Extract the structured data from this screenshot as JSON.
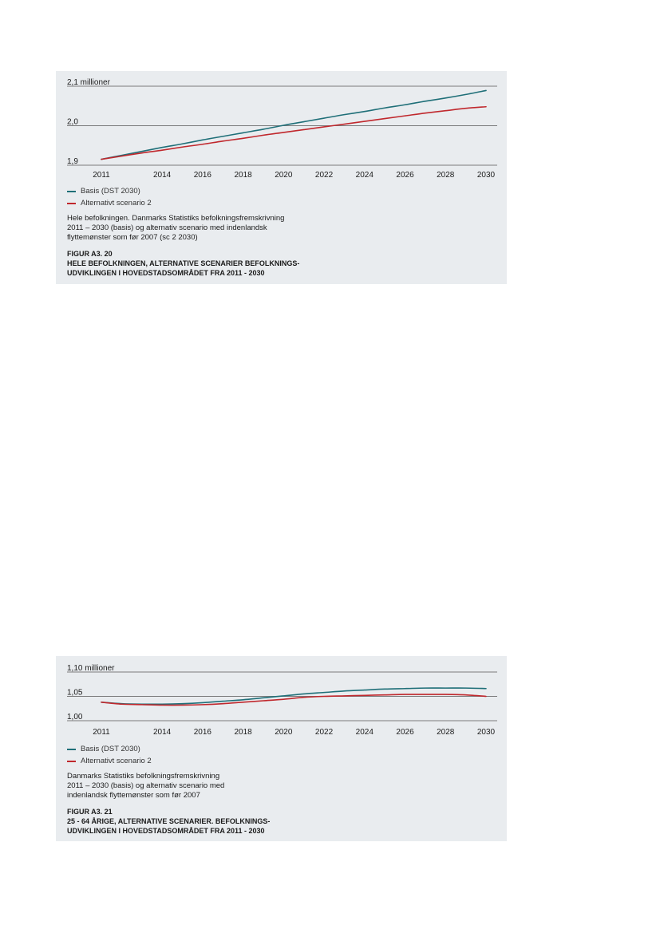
{
  "figures": [
    {
      "description_lines": [
        "Hele befolkningen. Danmarks Statistiks befolkningsfremskrivning",
        "2011 – 2030 (basis) og alternativ scenario med indenlandsk",
        "flyttemønster som før 2007 (sc 2 2030)"
      ],
      "figure_number": "FIGUR A3. 20",
      "title_lines": [
        "HELE BEFOLKNINGEN, ALTERNATIVE SCENARIER BEFOLKNINGS-",
        "UDVIKLINGEN I  HOVEDSTADSOMRÅDET FRA 2011 - 2030"
      ],
      "legend": [
        "Basis (DST 2030)",
        "Alternativt scenario 2"
      ],
      "colors": {
        "basis": "#1f6f78",
        "alternative": "#c0282d",
        "gridline": "#555555"
      }
    },
    {
      "description_lines": [
        "Danmarks Statistiks befolkningsfremskrivning",
        "2011 – 2030 (basis) og alternativ scenario med",
        "indenlandsk flyttemønster som før 2007"
      ],
      "figure_number": "FIGUR A3. 21",
      "title_lines": [
        "25 - 64 ÅRIGE, ALTERNATIVE SCENARIER. BEFOLKNINGS-",
        "UDVIKLINGEN I HOVEDSTADSOMRÅDET FRA 2011 - 2030"
      ],
      "legend": [
        "Basis (DST 2030)",
        "Alternativt scenario 2"
      ],
      "colors": {
        "basis": "#1f6f78",
        "alternative": "#c0282d",
        "gridline": "#555555"
      }
    }
  ],
  "chart_data": [
    {
      "type": "line",
      "xlim": [
        2011,
        2030
      ],
      "ylim": [
        1.9,
        2.1
      ],
      "x_ticks": [
        "2011",
        "2014",
        "2016",
        "2018",
        "2020",
        "2022",
        "2024",
        "2026",
        "2028",
        "2030"
      ],
      "y_ticks": [
        {
          "value": 1.9,
          "label": "1,9"
        },
        {
          "value": 2.0,
          "label": "2,0"
        },
        {
          "value": 2.1,
          "label": "2,1 millioner"
        }
      ],
      "grid": true,
      "legend_position": "bottom-left",
      "x": [
        2011,
        2012,
        2013,
        2014,
        2015,
        2016,
        2017,
        2018,
        2019,
        2020,
        2021,
        2022,
        2023,
        2024,
        2025,
        2026,
        2027,
        2028,
        2029,
        2030
      ],
      "series": [
        {
          "name": "Basis (DST 2030)",
          "color": "#1f6f78",
          "values": [
            1.915,
            1.925,
            1.935,
            1.945,
            1.954,
            1.964,
            1.973,
            1.982,
            1.991,
            2.001,
            2.01,
            2.019,
            2.028,
            2.036,
            2.045,
            2.053,
            2.062,
            2.07,
            2.079,
            2.089
          ]
        },
        {
          "name": "Alternativt scenario 2",
          "color": "#c0282d",
          "values": [
            1.915,
            1.923,
            1.931,
            1.938,
            1.946,
            1.953,
            1.961,
            1.968,
            1.976,
            1.983,
            1.99,
            1.997,
            2.004,
            2.011,
            2.018,
            2.025,
            2.032,
            2.038,
            2.044,
            2.048
          ]
        }
      ]
    },
    {
      "type": "line",
      "xlim": [
        2011,
        2030
      ],
      "ylim": [
        1.0,
        1.1
      ],
      "x_ticks": [
        "2011",
        "2014",
        "2016",
        "2018",
        "2020",
        "2022",
        "2024",
        "2026",
        "2028",
        "2030"
      ],
      "y_ticks": [
        {
          "value": 1.0,
          "label": "1,00"
        },
        {
          "value": 1.05,
          "label": "1,05"
        },
        {
          "value": 1.1,
          "label": "1,10  millioner"
        }
      ],
      "grid": true,
      "legend_position": "bottom-left",
      "x": [
        2011,
        2012,
        2013,
        2014,
        2015,
        2016,
        2017,
        2018,
        2019,
        2020,
        2021,
        2022,
        2023,
        2024,
        2025,
        2026,
        2027,
        2028,
        2029,
        2030
      ],
      "series": [
        {
          "name": "Basis (DST 2030)",
          "color": "#1f6f78",
          "values": [
            1.038,
            1.035,
            1.034,
            1.034,
            1.035,
            1.037,
            1.04,
            1.043,
            1.047,
            1.051,
            1.055,
            1.058,
            1.061,
            1.063,
            1.065,
            1.066,
            1.067,
            1.067,
            1.067,
            1.066
          ]
        },
        {
          "name": "Alternativt scenario 2",
          "color": "#c0282d",
          "values": [
            1.038,
            1.034,
            1.033,
            1.032,
            1.032,
            1.033,
            1.035,
            1.038,
            1.041,
            1.044,
            1.048,
            1.05,
            1.051,
            1.052,
            1.053,
            1.054,
            1.054,
            1.054,
            1.053,
            1.05
          ]
        }
      ]
    }
  ]
}
